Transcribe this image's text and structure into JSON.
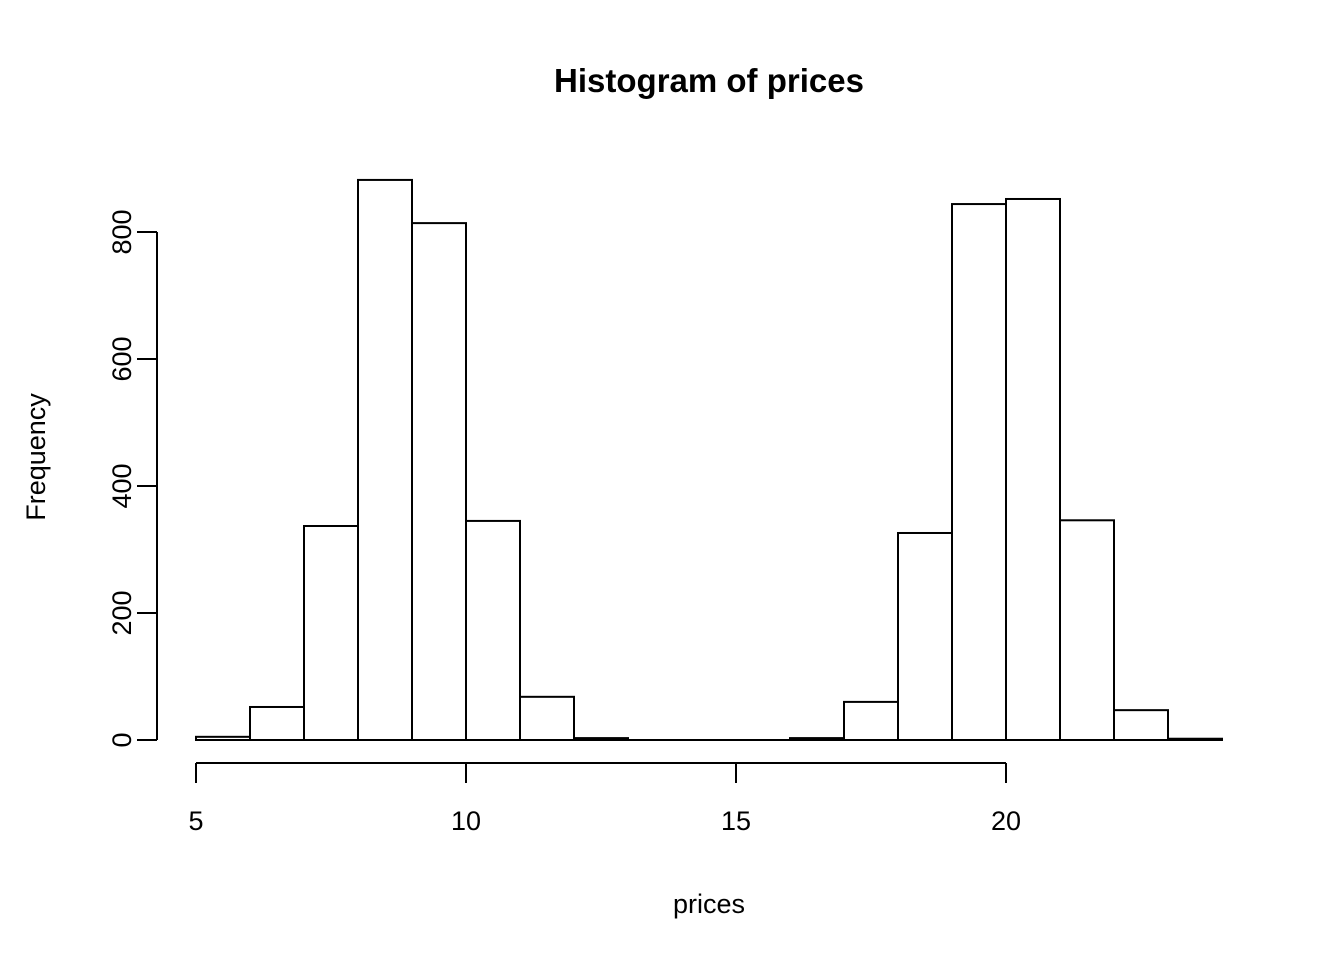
{
  "figure": {
    "title": "Histogram of prices",
    "x_axis": {
      "label": "prices",
      "tick_labels": [
        "5",
        "10",
        "15",
        "20"
      ]
    },
    "y_axis": {
      "label": "Frequency",
      "tick_labels": [
        "0",
        "200",
        "400",
        "600",
        "800"
      ]
    },
    "colors": {
      "foreground": "#000000",
      "background": "#ffffff",
      "bar_fill": "#ffffff",
      "bar_stroke": "#000000"
    }
  },
  "chart_data": {
    "type": "bar",
    "subtype": "histogram",
    "title": "Histogram of prices",
    "xlabel": "prices",
    "ylabel": "Frequency",
    "bin_breaks": [
      5,
      6,
      7,
      8,
      9,
      10,
      11,
      12,
      13,
      14,
      15,
      16,
      17,
      18,
      19,
      20,
      21,
      22,
      23,
      24
    ],
    "counts": [
      5,
      52,
      337,
      882,
      814,
      345,
      68,
      3,
      0,
      0,
      0,
      3,
      60,
      326,
      844,
      852,
      346,
      47,
      2
    ],
    "x_ticks": [
      5,
      10,
      15,
      20
    ],
    "y_ticks": [
      0,
      200,
      400,
      600,
      800
    ],
    "xlim": [
      5,
      24
    ],
    "ylim": [
      0,
      882
    ],
    "grid": false,
    "legend": false,
    "bar_fill": "#ffffff",
    "line_color": "#000000"
  }
}
